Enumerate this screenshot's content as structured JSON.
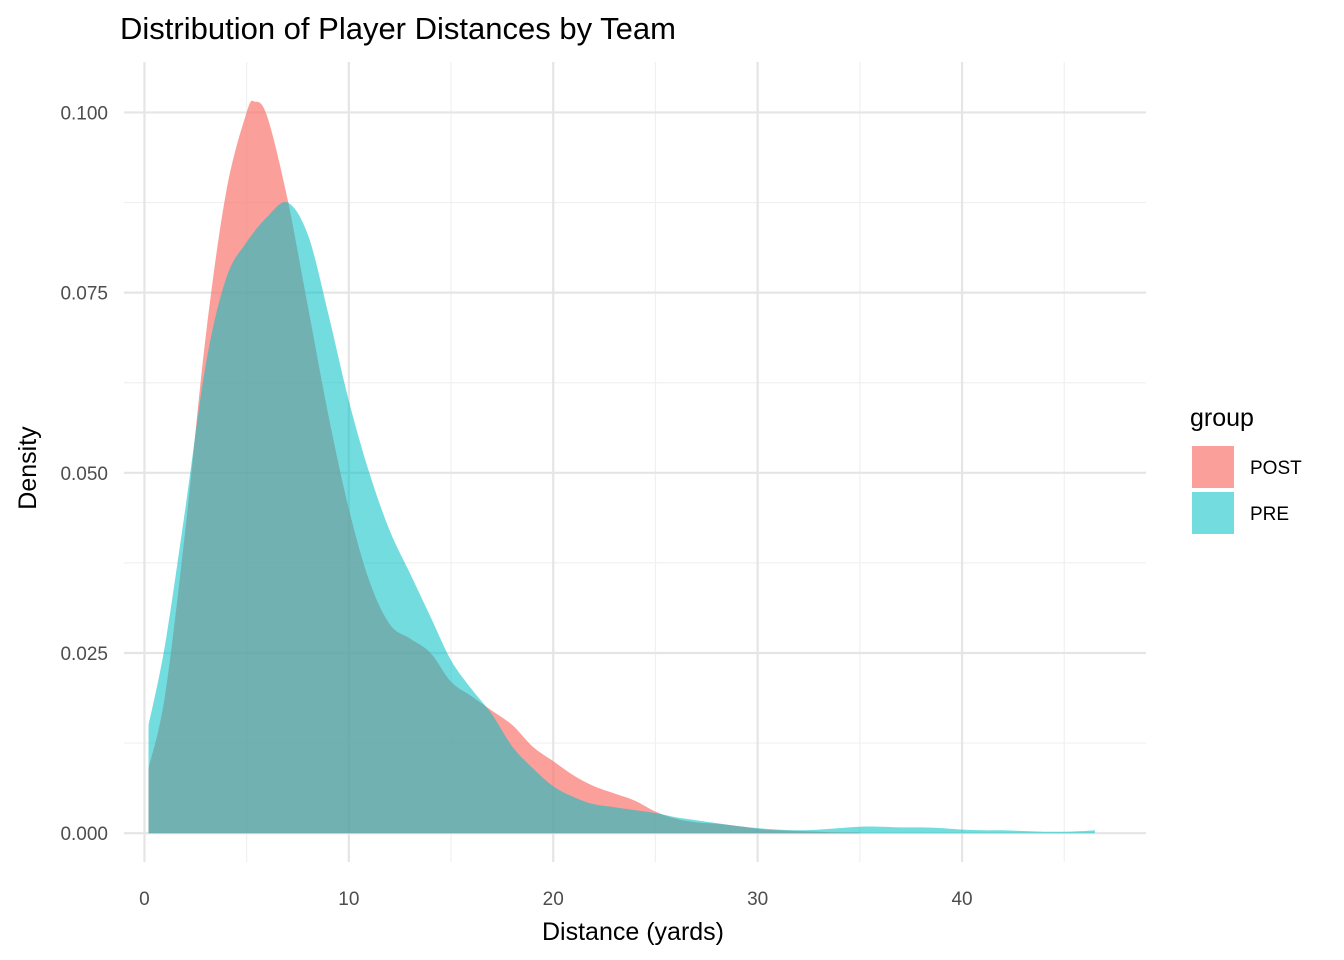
{
  "colors": {
    "POST": "#F8766D",
    "PRE": "#00BFC4",
    "grid_major": "#e5e5e5",
    "grid_minor": "#f0f0f0"
  },
  "chart_data": {
    "type": "area",
    "subtype": "density",
    "title": "Distribution of Player Distances by Team",
    "xlabel": "Distance (yards)",
    "ylabel": "Density",
    "xlim": [
      -1,
      49
    ],
    "ylim": [
      -0.004,
      0.107
    ],
    "x_ticks": [
      0,
      10,
      20,
      30,
      40
    ],
    "x_tick_labels": [
      "0",
      "10",
      "20",
      "30",
      "40"
    ],
    "y_ticks": [
      0,
      0.025,
      0.05,
      0.075,
      0.1
    ],
    "y_tick_labels": [
      "0.000",
      "0.025",
      "0.050",
      "0.075",
      "0.100"
    ],
    "grid": true,
    "legend": {
      "title": "group",
      "position": "right"
    },
    "series": [
      {
        "name": "POST",
        "color": "#F8766D",
        "opacity": 0.7,
        "points": [
          [
            0.2,
            0.009
          ],
          [
            1,
            0.019
          ],
          [
            2,
            0.042
          ],
          [
            3,
            0.069
          ],
          [
            4,
            0.089
          ],
          [
            5,
            0.1
          ],
          [
            5.4,
            0.1015
          ],
          [
            6,
            0.0995
          ],
          [
            7,
            0.088
          ],
          [
            8,
            0.073
          ],
          [
            9,
            0.058
          ],
          [
            10,
            0.045
          ],
          [
            11,
            0.035
          ],
          [
            12,
            0.029
          ],
          [
            13,
            0.027
          ],
          [
            14,
            0.025
          ],
          [
            15,
            0.021
          ],
          [
            16,
            0.019
          ],
          [
            17,
            0.017
          ],
          [
            18,
            0.015
          ],
          [
            19,
            0.012
          ],
          [
            20,
            0.01
          ],
          [
            21,
            0.008
          ],
          [
            22,
            0.0065
          ],
          [
            23,
            0.0055
          ],
          [
            24,
            0.0045
          ],
          [
            25,
            0.003
          ],
          [
            26,
            0.002
          ],
          [
            27,
            0.0015
          ],
          [
            28,
            0.0013
          ],
          [
            29,
            0.001
          ],
          [
            30,
            0.0006
          ],
          [
            31,
            0.0004
          ],
          [
            32,
            0.0003
          ],
          [
            33,
            0.0002
          ],
          [
            34,
            0.0001
          ],
          [
            35,
            0.0001
          ]
        ]
      },
      {
        "name": "PRE",
        "color": "#00BFC4",
        "opacity": 0.55,
        "points": [
          [
            0.2,
            0.015
          ],
          [
            1,
            0.026
          ],
          [
            2,
            0.045
          ],
          [
            3,
            0.065
          ],
          [
            4,
            0.077
          ],
          [
            5,
            0.082
          ],
          [
            6,
            0.0855
          ],
          [
            7,
            0.0875
          ],
          [
            8,
            0.083
          ],
          [
            9,
            0.072
          ],
          [
            10,
            0.06
          ],
          [
            11,
            0.05
          ],
          [
            12,
            0.042
          ],
          [
            13,
            0.036
          ],
          [
            14,
            0.03
          ],
          [
            15,
            0.024
          ],
          [
            16,
            0.02
          ],
          [
            17,
            0.0165
          ],
          [
            18,
            0.012
          ],
          [
            19,
            0.009
          ],
          [
            20,
            0.0065
          ],
          [
            21,
            0.005
          ],
          [
            22,
            0.004
          ],
          [
            23,
            0.0036
          ],
          [
            24,
            0.0032
          ],
          [
            25,
            0.0028
          ],
          [
            26,
            0.0022
          ],
          [
            27,
            0.0018
          ],
          [
            28,
            0.0014
          ],
          [
            29,
            0.001
          ],
          [
            30,
            0.0007
          ],
          [
            31,
            0.0005
          ],
          [
            32,
            0.0004
          ],
          [
            33,
            0.0005
          ],
          [
            34,
            0.0007
          ],
          [
            35,
            0.0009
          ],
          [
            36,
            0.0009
          ],
          [
            37,
            0.0008
          ],
          [
            38,
            0.0008
          ],
          [
            39,
            0.0007
          ],
          [
            40,
            0.0005
          ],
          [
            41,
            0.0004
          ],
          [
            42,
            0.0004
          ],
          [
            43,
            0.0003
          ],
          [
            44,
            0.0002
          ],
          [
            45,
            0.0002
          ],
          [
            46,
            0.0003
          ],
          [
            46.5,
            0.0004
          ]
        ]
      }
    ]
  }
}
